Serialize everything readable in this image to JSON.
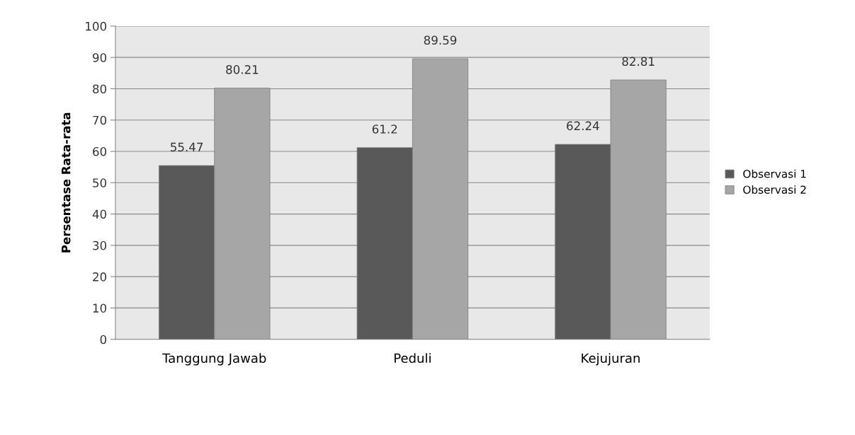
{
  "chart_data": {
    "type": "bar",
    "ylabel": "Persentase Rata-rata",
    "categories": [
      "Tanggung Jawab",
      "Peduli",
      "Kejujuran"
    ],
    "series": [
      {
        "name": "Observasi 1",
        "color": "#595959",
        "values": [
          55.47,
          61.2,
          62.24
        ]
      },
      {
        "name": "Observasi 2",
        "color": "#a6a6a6",
        "values": [
          80.21,
          89.59,
          82.81
        ]
      }
    ],
    "ylim": [
      0,
      100
    ],
    "yticks": [
      0,
      10,
      20,
      30,
      40,
      50,
      60,
      70,
      80,
      90,
      100
    ],
    "grid": "y",
    "legend": "right",
    "data_labels": true
  }
}
